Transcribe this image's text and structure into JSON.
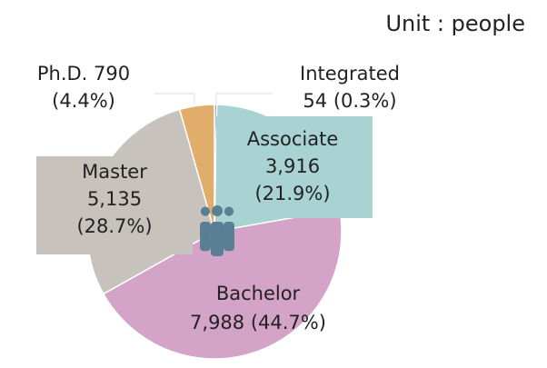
{
  "chart_data": {
    "type": "pie",
    "unit_label": "Unit : people",
    "categories": [
      "Integrated",
      "Associate",
      "Bachelor",
      "Master",
      "Ph.D."
    ],
    "values": [
      54,
      3916,
      7988,
      5135,
      790
    ],
    "value_labels": [
      "54",
      "3,916",
      "7,988",
      "5,135",
      "790"
    ],
    "percent_labels": [
      "(0.3%)",
      "(21.9%)",
      "(44.7%)",
      "(28.7%)",
      "(4.4%)"
    ],
    "colors": [
      "#5f86b8",
      "#a9d3d3",
      "#d3a4c8",
      "#c8c2bc",
      "#e0ad6b"
    ]
  }
}
